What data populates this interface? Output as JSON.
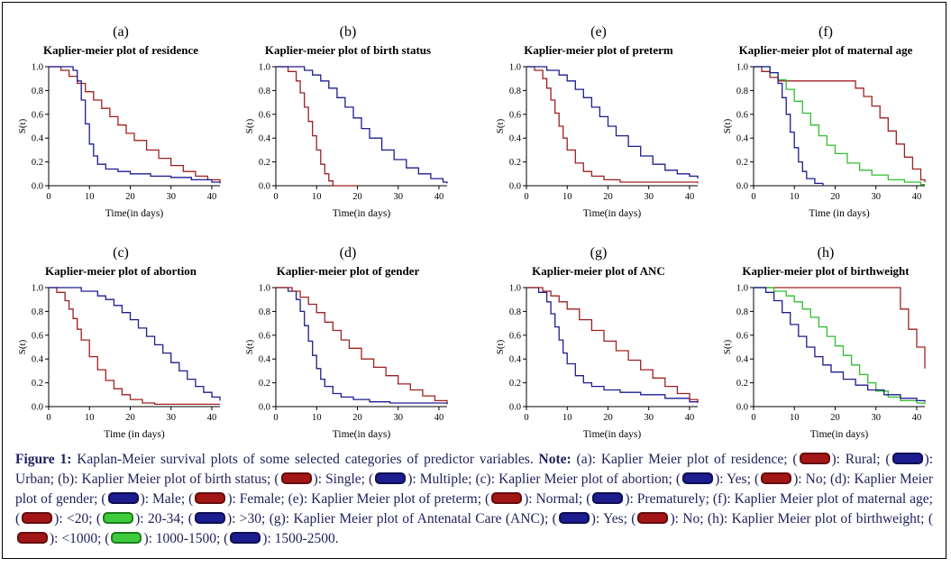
{
  "swatch_colors": {
    "red": {
      "fill": "#a31616",
      "border": "#640d0d"
    },
    "blue": {
      "fill": "#1d1d8f",
      "border": "#0e0e52"
    },
    "green": {
      "fill": "#3ecb3e",
      "border": "#1d7d1d"
    }
  },
  "caption": {
    "segments": [
      {
        "t": "Figure 1:",
        "bold": true
      },
      {
        "t": " Kaplan-Meier survival plots of some selected categories of predictor variables. "
      },
      {
        "t": "Note:",
        "bold": true
      },
      {
        "t": " (a): Kaplier Meier plot of residence; ("
      },
      {
        "swatch": "red"
      },
      {
        "t": "): Rural; ("
      },
      {
        "swatch": "blue"
      },
      {
        "t": "): Urban; (b): Kaplier Meier plot of birth status; ("
      },
      {
        "swatch": "red"
      },
      {
        "t": "): Single; ("
      },
      {
        "swatch": "blue"
      },
      {
        "t": "): Multiple; (c): Kaplier Meier plot of abortion; ("
      },
      {
        "swatch": "blue"
      },
      {
        "t": "): Yes; ("
      },
      {
        "swatch": "red"
      },
      {
        "t": "): No; (d): Kaplier Meier plot of gender; ("
      },
      {
        "swatch": "blue"
      },
      {
        "t": "): Male; ("
      },
      {
        "swatch": "red"
      },
      {
        "t": "): Female; (e): Kaplier Meier plot of preterm; ("
      },
      {
        "swatch": "red"
      },
      {
        "t": "): Normal; ("
      },
      {
        "swatch": "blue"
      },
      {
        "t": "): Prematurely; (f): Kaplier Meier plot of maternal age; ("
      },
      {
        "swatch": "red"
      },
      {
        "t": "): <20; ("
      },
      {
        "swatch": "green"
      },
      {
        "t": "): 20-34; ("
      },
      {
        "swatch": "blue"
      },
      {
        "t": "): >30; (g): Kaplier Meier plot of Antenatal Care (ANC); ("
      },
      {
        "swatch": "blue"
      },
      {
        "t": "): Yes; ("
      },
      {
        "swatch": "red"
      },
      {
        "t": "): No; (h): Kaplier Meier plot of birthweight; ("
      },
      {
        "swatch": "red"
      },
      {
        "t": "): <1000; ("
      },
      {
        "swatch": "green"
      },
      {
        "t": "): 1000-1500; ("
      },
      {
        "swatch": "blue"
      },
      {
        "t": "): 1500-2500."
      }
    ]
  },
  "chart_data": [
    {
      "id": "a",
      "panel_label": "(a)",
      "type": "line",
      "title": "Kaplier-meier plot of residence",
      "xlabel": "Time(in days)",
      "ylabel": "S(t)",
      "xlim": [
        0,
        42
      ],
      "ylim": [
        0,
        1
      ],
      "xticks": [
        0,
        10,
        20,
        30,
        40
      ],
      "yticks": [
        0,
        0.2,
        0.4,
        0.6,
        0.8,
        1
      ],
      "ytick_labels": [
        "0.0",
        "0.2",
        "0.4",
        "0.6",
        "0.8",
        "1.0"
      ],
      "series": [
        {
          "name": "Rural",
          "color": "#a02020",
          "x": [
            0,
            3,
            5,
            7,
            9,
            11,
            13,
            15,
            17,
            19,
            21,
            24,
            27,
            30,
            33,
            36,
            39,
            42
          ],
          "y": [
            1.0,
            0.97,
            0.92,
            0.86,
            0.79,
            0.72,
            0.65,
            0.58,
            0.51,
            0.44,
            0.38,
            0.3,
            0.23,
            0.17,
            0.12,
            0.08,
            0.05,
            0.03
          ]
        },
        {
          "name": "Urban",
          "color": "#1d1d8f",
          "x": [
            0,
            6,
            7,
            8,
            9,
            10,
            11,
            12,
            14,
            17,
            20,
            25,
            30,
            35,
            40,
            42
          ],
          "y": [
            1.0,
            0.97,
            0.88,
            0.72,
            0.52,
            0.35,
            0.25,
            0.18,
            0.14,
            0.12,
            0.1,
            0.08,
            0.07,
            0.05,
            0.03,
            0.02
          ]
        }
      ]
    },
    {
      "id": "b",
      "panel_label": "(b)",
      "type": "line",
      "title": "Kaplier-meier plot of birth status",
      "xlabel": "Time(in days)",
      "ylabel": "S(t)",
      "xlim": [
        0,
        42
      ],
      "ylim": [
        0,
        1
      ],
      "xticks": [
        0,
        10,
        20,
        30,
        40
      ],
      "yticks": [
        0,
        0.2,
        0.4,
        0.6,
        0.8,
        1
      ],
      "ytick_labels": [
        "0.0",
        "0.2",
        "0.4",
        "0.6",
        "0.8",
        "1.0"
      ],
      "series": [
        {
          "name": "Single",
          "color": "#a02020",
          "x": [
            0,
            3,
            5,
            6,
            7,
            8,
            9,
            10,
            11,
            12,
            13,
            14,
            20
          ],
          "y": [
            1.0,
            0.96,
            0.88,
            0.78,
            0.66,
            0.54,
            0.42,
            0.3,
            0.18,
            0.1,
            0.04,
            0.0,
            0.0
          ]
        },
        {
          "name": "Multiple",
          "color": "#1d1d8f",
          "x": [
            0,
            7,
            9,
            11,
            13,
            15,
            17,
            19,
            21,
            23,
            26,
            29,
            32,
            35,
            38,
            41,
            42
          ],
          "y": [
            1.0,
            0.97,
            0.93,
            0.88,
            0.82,
            0.74,
            0.66,
            0.57,
            0.48,
            0.4,
            0.3,
            0.22,
            0.15,
            0.1,
            0.06,
            0.03,
            0.02
          ]
        }
      ]
    },
    {
      "id": "e",
      "panel_label": "(e)",
      "type": "line",
      "title": "Kaplier-meier plot of preterm",
      "xlabel": "Time(in days)",
      "ylabel": "S(t)",
      "xlim": [
        0,
        42
      ],
      "ylim": [
        0,
        1
      ],
      "xticks": [
        0,
        10,
        20,
        30,
        40
      ],
      "yticks": [
        0,
        0.2,
        0.4,
        0.6,
        0.8,
        1
      ],
      "ytick_labels": [
        "0.0",
        "0.2",
        "0.4",
        "0.6",
        "0.8",
        "1.0"
      ],
      "series": [
        {
          "name": "Normal",
          "color": "#a02020",
          "x": [
            0,
            2,
            4,
            5,
            6,
            7,
            8,
            9,
            10,
            12,
            14,
            16,
            19,
            23,
            42
          ],
          "y": [
            1.0,
            0.97,
            0.9,
            0.82,
            0.72,
            0.61,
            0.5,
            0.4,
            0.3,
            0.19,
            0.12,
            0.08,
            0.05,
            0.03,
            0.02
          ]
        },
        {
          "name": "Prematurely",
          "color": "#1d1d8f",
          "x": [
            0,
            5,
            8,
            10,
            12,
            14,
            16,
            18,
            20,
            22,
            25,
            28,
            31,
            34,
            37,
            40,
            42
          ],
          "y": [
            1.0,
            0.97,
            0.93,
            0.88,
            0.81,
            0.74,
            0.66,
            0.58,
            0.5,
            0.42,
            0.33,
            0.25,
            0.18,
            0.13,
            0.1,
            0.08,
            0.06
          ]
        }
      ]
    },
    {
      "id": "f",
      "panel_label": "(f)",
      "type": "line",
      "title": "Kaplier-meier plot of maternal age",
      "xlabel": "Time (in days)",
      "ylabel": "S(t)",
      "xlim": [
        0,
        42
      ],
      "ylim": [
        0,
        1
      ],
      "xticks": [
        0,
        10,
        20,
        30,
        40
      ],
      "yticks": [
        0,
        0.2,
        0.4,
        0.6,
        0.8,
        1
      ],
      "ytick_labels": [
        "0.0",
        "0.2",
        "0.4",
        "0.6",
        "0.8",
        "1.0"
      ],
      "series": [
        {
          "name": "<20",
          "color": "#a02020",
          "x": [
            0,
            2,
            4,
            6,
            23,
            25,
            27,
            29,
            31,
            33,
            35,
            37,
            39,
            41,
            42
          ],
          "y": [
            1.0,
            0.96,
            0.91,
            0.88,
            0.88,
            0.82,
            0.75,
            0.67,
            0.57,
            0.46,
            0.35,
            0.24,
            0.14,
            0.05,
            0.03
          ]
        },
        {
          "name": "20-34",
          "color": "#2fbf2f",
          "x": [
            0,
            4,
            6,
            8,
            10,
            12,
            14,
            16,
            18,
            20,
            23,
            26,
            29,
            33,
            37,
            41,
            42
          ],
          "y": [
            1.0,
            0.95,
            0.89,
            0.81,
            0.71,
            0.61,
            0.51,
            0.42,
            0.34,
            0.27,
            0.19,
            0.13,
            0.09,
            0.05,
            0.03,
            0.01,
            0.01
          ]
        },
        {
          "name": ">30",
          "color": "#1d1d8f",
          "x": [
            0,
            4,
            6,
            7,
            8,
            9,
            10,
            11,
            12,
            13,
            15,
            17
          ],
          "y": [
            1.0,
            0.95,
            0.86,
            0.74,
            0.6,
            0.45,
            0.32,
            0.2,
            0.12,
            0.06,
            0.02,
            0.0
          ]
        }
      ]
    },
    {
      "id": "c",
      "panel_label": "(c)",
      "type": "line",
      "title": "Kaplier-meier plot of abortion",
      "xlabel": "Time (in days)",
      "ylabel": "S(t)",
      "xlim": [
        0,
        42
      ],
      "ylim": [
        0,
        1
      ],
      "xticks": [
        0,
        10,
        20,
        30,
        40
      ],
      "yticks": [
        0,
        0.2,
        0.4,
        0.6,
        0.8,
        1
      ],
      "ytick_labels": [
        "0.0",
        "0.2",
        "0.4",
        "0.6",
        "0.8",
        "1.0"
      ],
      "series": [
        {
          "name": "No",
          "color": "#a02020",
          "x": [
            0,
            2,
            4,
            5,
            6,
            7,
            8,
            10,
            12,
            14,
            16,
            18,
            20,
            23,
            26,
            42
          ],
          "y": [
            1.0,
            0.96,
            0.89,
            0.82,
            0.74,
            0.65,
            0.56,
            0.42,
            0.31,
            0.22,
            0.15,
            0.1,
            0.06,
            0.03,
            0.02,
            0.02
          ]
        },
        {
          "name": "Yes",
          "color": "#1d1d8f",
          "x": [
            0,
            8,
            12,
            14,
            16,
            18,
            20,
            22,
            24,
            26,
            28,
            30,
            32,
            34,
            36,
            38,
            40,
            42
          ],
          "y": [
            1.0,
            0.97,
            0.93,
            0.9,
            0.85,
            0.79,
            0.73,
            0.66,
            0.59,
            0.52,
            0.45,
            0.37,
            0.3,
            0.23,
            0.17,
            0.12,
            0.08,
            0.05
          ]
        }
      ]
    },
    {
      "id": "d",
      "panel_label": "(d)",
      "type": "line",
      "title": "Kaplier-meier plot of gender",
      "xlabel": "Time(in days)",
      "ylabel": "S(t)",
      "xlim": [
        0,
        42
      ],
      "ylim": [
        0,
        1
      ],
      "xticks": [
        0,
        10,
        20,
        30,
        40
      ],
      "yticks": [
        0,
        0.2,
        0.4,
        0.6,
        0.8,
        1
      ],
      "ytick_labels": [
        "0.0",
        "0.2",
        "0.4",
        "0.6",
        "0.8",
        "1.0"
      ],
      "series": [
        {
          "name": "Male",
          "color": "#1d1d8f",
          "x": [
            0,
            3,
            5,
            6,
            7,
            8,
            9,
            10,
            11,
            12,
            14,
            16,
            19,
            23,
            28,
            42
          ],
          "y": [
            1.0,
            0.97,
            0.9,
            0.8,
            0.68,
            0.55,
            0.43,
            0.32,
            0.23,
            0.17,
            0.11,
            0.08,
            0.06,
            0.04,
            0.03,
            0.02
          ]
        },
        {
          "name": "Female",
          "color": "#a02020",
          "x": [
            0,
            4,
            6,
            8,
            10,
            12,
            14,
            16,
            18,
            21,
            24,
            27,
            30,
            33,
            36,
            39,
            42
          ],
          "y": [
            1.0,
            0.97,
            0.92,
            0.86,
            0.79,
            0.71,
            0.64,
            0.56,
            0.49,
            0.4,
            0.33,
            0.26,
            0.19,
            0.14,
            0.09,
            0.05,
            0.03
          ]
        }
      ]
    },
    {
      "id": "g",
      "panel_label": "(g)",
      "type": "line",
      "title": "Kaplier-meier plot of ANC",
      "xlabel": "Time(in days)",
      "ylabel": "S(t)",
      "xlim": [
        0,
        42
      ],
      "ylim": [
        0,
        1
      ],
      "xticks": [
        0,
        10,
        20,
        30,
        40
      ],
      "yticks": [
        0,
        0.2,
        0.4,
        0.6,
        0.8,
        1
      ],
      "ytick_labels": [
        "0.0",
        "0.2",
        "0.4",
        "0.6",
        "0.8",
        "1.0"
      ],
      "series": [
        {
          "name": "Yes",
          "color": "#1d1d8f",
          "x": [
            0,
            3,
            5,
            6,
            7,
            8,
            9,
            10,
            12,
            14,
            16,
            19,
            23,
            28,
            34,
            40,
            42
          ],
          "y": [
            1.0,
            0.96,
            0.88,
            0.78,
            0.67,
            0.56,
            0.45,
            0.36,
            0.26,
            0.2,
            0.17,
            0.14,
            0.12,
            0.1,
            0.07,
            0.04,
            0.03
          ]
        },
        {
          "name": "No",
          "color": "#a02020",
          "x": [
            0,
            4,
            6,
            8,
            10,
            13,
            16,
            19,
            22,
            25,
            28,
            31,
            34,
            37,
            40,
            42
          ],
          "y": [
            1.0,
            0.97,
            0.93,
            0.88,
            0.82,
            0.73,
            0.64,
            0.55,
            0.47,
            0.39,
            0.31,
            0.24,
            0.17,
            0.11,
            0.06,
            0.04
          ]
        }
      ]
    },
    {
      "id": "h",
      "panel_label": "(h)",
      "type": "line",
      "title": "Kaplier-meier plot of birthweight",
      "xlabel": "Time(in days)",
      "ylabel": "S(t)",
      "xlim": [
        0,
        42
      ],
      "ylim": [
        0,
        1
      ],
      "xticks": [
        0,
        10,
        20,
        30,
        40
      ],
      "yticks": [
        0,
        0.2,
        0.4,
        0.6,
        0.8,
        1
      ],
      "ytick_labels": [
        "0.0",
        "0.2",
        "0.4",
        "0.6",
        "0.8",
        "1.0"
      ],
      "series": [
        {
          "name": "<1000",
          "color": "#a02020",
          "x": [
            0,
            34,
            36,
            38,
            40,
            42
          ],
          "y": [
            1.0,
            1.0,
            0.82,
            0.65,
            0.5,
            0.32
          ]
        },
        {
          "name": "1000-1500",
          "color": "#2fbf2f",
          "x": [
            0,
            5,
            8,
            10,
            12,
            14,
            16,
            18,
            20,
            22,
            24,
            26,
            28,
            30,
            33,
            36,
            40,
            42
          ],
          "y": [
            1.0,
            0.97,
            0.93,
            0.88,
            0.82,
            0.75,
            0.67,
            0.59,
            0.51,
            0.43,
            0.35,
            0.27,
            0.2,
            0.13,
            0.08,
            0.05,
            0.03,
            0.02
          ]
        },
        {
          "name": "1500-2500",
          "color": "#1d1d8f",
          "x": [
            0,
            3,
            5,
            7,
            9,
            11,
            13,
            15,
            17,
            19,
            22,
            25,
            28,
            32,
            36,
            40,
            42
          ],
          "y": [
            1.0,
            0.96,
            0.89,
            0.79,
            0.69,
            0.59,
            0.5,
            0.42,
            0.35,
            0.29,
            0.23,
            0.18,
            0.14,
            0.1,
            0.07,
            0.05,
            0.04
          ]
        }
      ]
    }
  ]
}
